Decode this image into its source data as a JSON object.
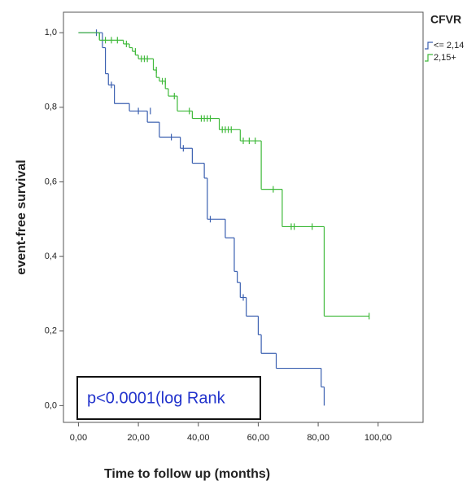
{
  "chart_data": {
    "type": "kaplan-meier",
    "x_label": "Time to follow up (months)",
    "y_label": "event-free survival",
    "legend_title": "CFVR",
    "annotation": "p<0.0001(log Rank",
    "xlim": [
      -5,
      115
    ],
    "ylim": [
      -0.045,
      1.055
    ],
    "xticks": [
      {
        "value": 0,
        "label": "0,00"
      },
      {
        "value": 20,
        "label": "20,00"
      },
      {
        "value": 40,
        "label": "40,00"
      },
      {
        "value": 60,
        "label": "60,00"
      },
      {
        "value": 80,
        "label": "80,00"
      },
      {
        "value": 100,
        "label": "100,00"
      }
    ],
    "yticks": [
      {
        "value": 0,
        "label": "0,0"
      },
      {
        "value": 0.2,
        "label": "0,2"
      },
      {
        "value": 0.4,
        "label": "0,4"
      },
      {
        "value": 0.6,
        "label": "0,6"
      },
      {
        "value": 0.8,
        "label": "0,8"
      },
      {
        "value": 1,
        "label": "1,0"
      }
    ],
    "series": [
      {
        "name": "<= 2,14",
        "color": "#3a5fb0",
        "x": [
          0,
          8,
          9,
          10,
          12,
          17,
          23,
          27,
          34,
          38,
          42,
          43,
          49,
          52,
          53,
          54,
          56,
          60,
          61,
          66,
          81,
          82
        ],
        "values": [
          1,
          0.96,
          0.89,
          0.86,
          0.81,
          0.79,
          0.76,
          0.72,
          0.69,
          0.65,
          0.61,
          0.5,
          0.45,
          0.36,
          0.33,
          0.29,
          0.24,
          0.19,
          0.14,
          0.1,
          0.05,
          0
        ],
        "censored_x": [
          6,
          11,
          20,
          24,
          31,
          35,
          44,
          55
        ],
        "censored_values": [
          1,
          0.86,
          0.79,
          0.79,
          0.72,
          0.69,
          0.5,
          0.29
        ]
      },
      {
        "name": "2,15+",
        "color": "#3fb93a",
        "x": [
          0,
          7,
          15,
          17,
          18,
          19,
          20,
          25,
          26,
          27,
          29,
          30,
          33,
          38,
          47,
          54,
          61,
          68,
          82,
          97
        ],
        "values": [
          1,
          0.98,
          0.97,
          0.96,
          0.95,
          0.94,
          0.93,
          0.9,
          0.88,
          0.87,
          0.85,
          0.83,
          0.79,
          0.77,
          0.74,
          0.71,
          0.58,
          0.48,
          0.24,
          0.24
        ],
        "censored_x": [
          7,
          9,
          11,
          13,
          16,
          19,
          21,
          22,
          23,
          26,
          28,
          29,
          32,
          37,
          41,
          42,
          43,
          44,
          48,
          49,
          50,
          51,
          55,
          57,
          59,
          65,
          71,
          72,
          78,
          97
        ],
        "censored_values": [
          0.99,
          0.98,
          0.98,
          0.98,
          0.97,
          0.95,
          0.93,
          0.93,
          0.93,
          0.9,
          0.87,
          0.87,
          0.83,
          0.79,
          0.77,
          0.77,
          0.77,
          0.77,
          0.74,
          0.74,
          0.74,
          0.74,
          0.71,
          0.71,
          0.71,
          0.58,
          0.48,
          0.48,
          0.48,
          0.24
        ]
      }
    ]
  }
}
